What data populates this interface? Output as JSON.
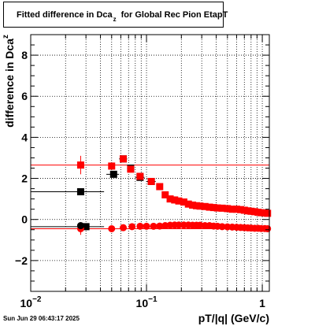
{
  "header": {
    "title_main": "Fitted difference in Dca",
    "title_sub": "z",
    "title_rest": "for Global Rec Pion EtapT"
  },
  "footer": {
    "timestamp": "Sun Jun 29 06:43:17 2025"
  },
  "chart_data": {
    "type": "scatter",
    "xlabel": "pT/|q| (GeV/c)",
    "ylabel_main": "difference in Dca",
    "ylabel_sub": "z",
    "x_scale": "log",
    "xlim": [
      0.01,
      1.15
    ],
    "ylim": [
      -3.5,
      9.0
    ],
    "grid": true,
    "y_ticks": [
      {
        "value": -2,
        "label": "−2"
      },
      {
        "value": 0,
        "label": "0"
      },
      {
        "value": 2,
        "label": "2"
      },
      {
        "value": 4,
        "label": "4"
      },
      {
        "value": 6,
        "label": "6"
      },
      {
        "value": 8,
        "label": "8"
      }
    ],
    "x_ticks": [
      {
        "value": 0.01,
        "base": "10",
        "exp": "−2"
      },
      {
        "value": 0.1,
        "base": "10",
        "exp": "−1"
      },
      {
        "value": 1,
        "base": "1",
        "exp": ""
      }
    ],
    "hlines": [
      {
        "y": 2.65,
        "color": "#ff0000"
      },
      {
        "y": -0.45,
        "color": "#ff0000"
      }
    ],
    "series": [
      {
        "marker": "square",
        "color": "#000000",
        "points": [
          {
            "x": 0.027,
            "y": 1.35,
            "xl": 0.01,
            "xh": 0.043,
            "err": 0.15
          },
          {
            "x": 0.052,
            "y": 2.2,
            "xl": 0.045,
            "xh": 0.058,
            "err": 0.12
          },
          {
            "x": 0.063,
            "y": 2.95,
            "xl": 0.058,
            "xh": 0.068,
            "err": 0.1
          },
          {
            "x": 0.073,
            "y": 2.5,
            "xl": 0.068,
            "xh": 0.078,
            "err": 0.1
          },
          {
            "x": 0.088,
            "y": 2.05,
            "xl": 0.08,
            "xh": 0.096,
            "err": 0.1
          },
          {
            "x": 0.11,
            "y": 1.85,
            "xl": 0.1,
            "xh": 0.12,
            "err": 0.1
          },
          {
            "x": 0.03,
            "y": -0.35,
            "xl": 0.01,
            "xh": 0.043,
            "err": 0.05
          }
        ]
      },
      {
        "marker": "square",
        "color": "#ff0000",
        "points": [
          {
            "x": 0.027,
            "y": 2.65,
            "err": 0.45
          },
          {
            "x": 0.05,
            "y": 2.6,
            "err": 0.15
          },
          {
            "x": 0.063,
            "y": 2.95,
            "err": 0.12
          },
          {
            "x": 0.073,
            "y": 2.45,
            "err": 0.1
          },
          {
            "x": 0.088,
            "y": 2.1,
            "err": 0.1
          },
          {
            "x": 0.11,
            "y": 1.85,
            "err": 0.1
          },
          {
            "x": 0.13,
            "y": 1.6,
            "err": 0.1
          },
          {
            "x": 0.145,
            "y": 1.2,
            "err": 0.1
          },
          {
            "x": 0.16,
            "y": 1.0,
            "err": 0.08
          },
          {
            "x": 0.175,
            "y": 0.95,
            "err": 0.08
          },
          {
            "x": 0.19,
            "y": 0.9,
            "err": 0.05
          },
          {
            "x": 0.21,
            "y": 0.85,
            "err": 0.05
          },
          {
            "x": 0.23,
            "y": 0.75,
            "err": 0.05
          },
          {
            "x": 0.25,
            "y": 0.7,
            "err": 0.05
          },
          {
            "x": 0.27,
            "y": 0.67,
            "err": 0.05
          },
          {
            "x": 0.29,
            "y": 0.65,
            "err": 0.05
          },
          {
            "x": 0.32,
            "y": 0.63,
            "err": 0.05
          },
          {
            "x": 0.35,
            "y": 0.6,
            "err": 0.05
          },
          {
            "x": 0.38,
            "y": 0.58,
            "err": 0.05
          },
          {
            "x": 0.41,
            "y": 0.56,
            "err": 0.05
          },
          {
            "x": 0.45,
            "y": 0.55,
            "err": 0.05
          },
          {
            "x": 0.5,
            "y": 0.53,
            "err": 0.05
          },
          {
            "x": 0.55,
            "y": 0.5,
            "err": 0.05
          },
          {
            "x": 0.6,
            "y": 0.5,
            "err": 0.05
          },
          {
            "x": 0.65,
            "y": 0.48,
            "err": 0.05
          },
          {
            "x": 0.7,
            "y": 0.45,
            "err": 0.05
          },
          {
            "x": 0.75,
            "y": 0.42,
            "err": 0.05
          },
          {
            "x": 0.8,
            "y": 0.4,
            "err": 0.05
          },
          {
            "x": 0.86,
            "y": 0.38,
            "err": 0.05
          },
          {
            "x": 0.92,
            "y": 0.35,
            "err": 0.05
          },
          {
            "x": 0.98,
            "y": 0.33,
            "err": 0.05
          },
          {
            "x": 1.05,
            "y": 0.32,
            "err": 0.05
          },
          {
            "x": 1.11,
            "y": 0.3,
            "err": 0.05
          }
        ]
      },
      {
        "marker": "circle",
        "color": "#ff0000",
        "points": [
          {
            "x": 0.027,
            "y": -0.45,
            "err": 0.3
          },
          {
            "x": 0.05,
            "y": -0.45,
            "err": 0.1
          },
          {
            "x": 0.063,
            "y": -0.4,
            "err": 0.08
          },
          {
            "x": 0.075,
            "y": -0.35,
            "err": 0.06
          },
          {
            "x": 0.088,
            "y": -0.33,
            "err": 0.05
          },
          {
            "x": 0.1,
            "y": -0.33,
            "err": 0.05
          },
          {
            "x": 0.115,
            "y": -0.33,
            "err": 0.05
          },
          {
            "x": 0.13,
            "y": -0.32,
            "err": 0.05
          },
          {
            "x": 0.145,
            "y": -0.3,
            "err": 0.05
          },
          {
            "x": 0.16,
            "y": -0.28,
            "err": 0.05
          },
          {
            "x": 0.175,
            "y": -0.27,
            "err": 0.05
          },
          {
            "x": 0.19,
            "y": -0.27,
            "err": 0.05
          },
          {
            "x": 0.21,
            "y": -0.27,
            "err": 0.05
          },
          {
            "x": 0.23,
            "y": -0.27,
            "err": 0.05
          },
          {
            "x": 0.25,
            "y": -0.28,
            "err": 0.05
          },
          {
            "x": 0.27,
            "y": -0.28,
            "err": 0.05
          },
          {
            "x": 0.29,
            "y": -0.28,
            "err": 0.05
          },
          {
            "x": 0.32,
            "y": -0.3,
            "err": 0.05
          },
          {
            "x": 0.35,
            "y": -0.3,
            "err": 0.05
          },
          {
            "x": 0.38,
            "y": -0.32,
            "err": 0.05
          },
          {
            "x": 0.41,
            "y": -0.33,
            "err": 0.05
          },
          {
            "x": 0.45,
            "y": -0.35,
            "err": 0.05
          },
          {
            "x": 0.5,
            "y": -0.36,
            "err": 0.05
          },
          {
            "x": 0.55,
            "y": -0.37,
            "err": 0.05
          },
          {
            "x": 0.6,
            "y": -0.38,
            "err": 0.05
          },
          {
            "x": 0.65,
            "y": -0.39,
            "err": 0.05
          },
          {
            "x": 0.7,
            "y": -0.4,
            "err": 0.05
          },
          {
            "x": 0.75,
            "y": -0.41,
            "err": 0.05
          },
          {
            "x": 0.8,
            "y": -0.42,
            "err": 0.05
          },
          {
            "x": 0.86,
            "y": -0.43,
            "err": 0.05
          },
          {
            "x": 0.92,
            "y": -0.43,
            "err": 0.05
          },
          {
            "x": 0.98,
            "y": -0.44,
            "err": 0.05
          },
          {
            "x": 1.05,
            "y": -0.44,
            "err": 0.05
          },
          {
            "x": 1.11,
            "y": -0.45,
            "err": 0.05
          }
        ]
      },
      {
        "marker": "circle",
        "color": "#000000",
        "points": [
          {
            "x": 0.027,
            "y": -0.3,
            "err": 0.05
          }
        ]
      }
    ]
  }
}
